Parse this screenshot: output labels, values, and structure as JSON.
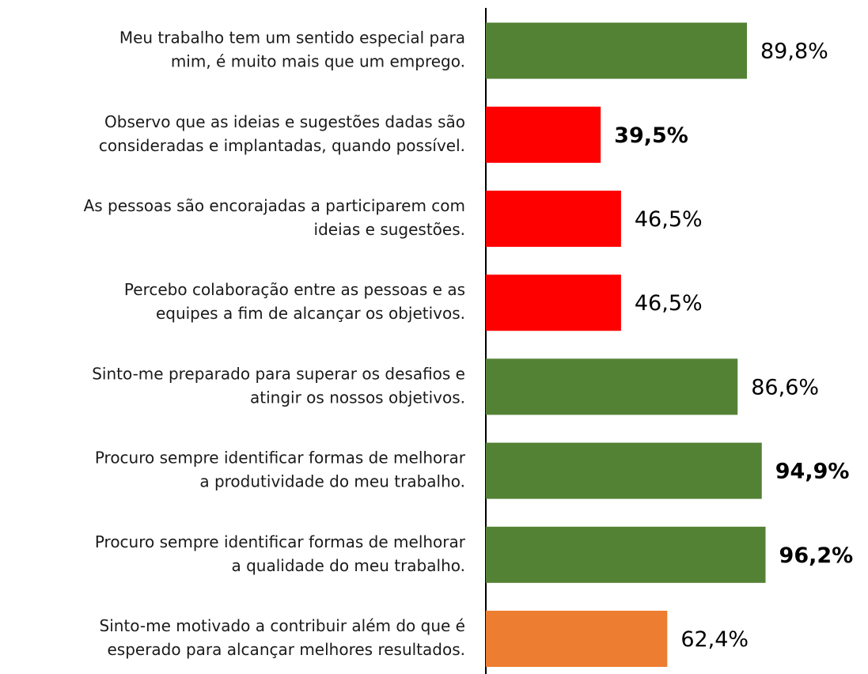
{
  "chart_data": {
    "type": "barh",
    "categories": [
      [
        "Meu trabalho tem um sentido especial para",
        "mim, é muito mais que um emprego."
      ],
      [
        "Observo que as ideias e sugestões dadas são",
        "consideradas e implantadas, quando possível."
      ],
      [
        "As pessoas são encorajadas a participarem com",
        "ideias e sugestões."
      ],
      [
        "Percebo colaboração entre as pessoas e as",
        "equipes a fim de alcançar os objetivos."
      ],
      [
        "Sinto-me preparado para superar os desafios e",
        "atingir os nossos objetivos."
      ],
      [
        "Procuro sempre identificar formas de melhorar",
        "a produtividade do meu trabalho."
      ],
      [
        "Procuro sempre identificar formas de melhorar",
        "a qualidade do meu trabalho."
      ],
      [
        "Sinto-me motivado a contribuir além do que é",
        "esperado para alcançar melhores resultados."
      ]
    ],
    "values": [
      89.8,
      39.5,
      46.5,
      46.5,
      86.6,
      94.9,
      96.2,
      62.4
    ],
    "value_labels": [
      "89,8%",
      "39,5%",
      "46,5%",
      "46,5%",
      "86,6%",
      "94,9%",
      "96,2%",
      "62,4%"
    ],
    "colors": [
      "#548235",
      "#ff0000",
      "#ff0000",
      "#ff0000",
      "#548235",
      "#548235",
      "#548235",
      "#ed7d31"
    ],
    "bold_labels": [
      false,
      true,
      false,
      false,
      false,
      true,
      true,
      false
    ],
    "xlim": [
      0,
      100
    ]
  }
}
